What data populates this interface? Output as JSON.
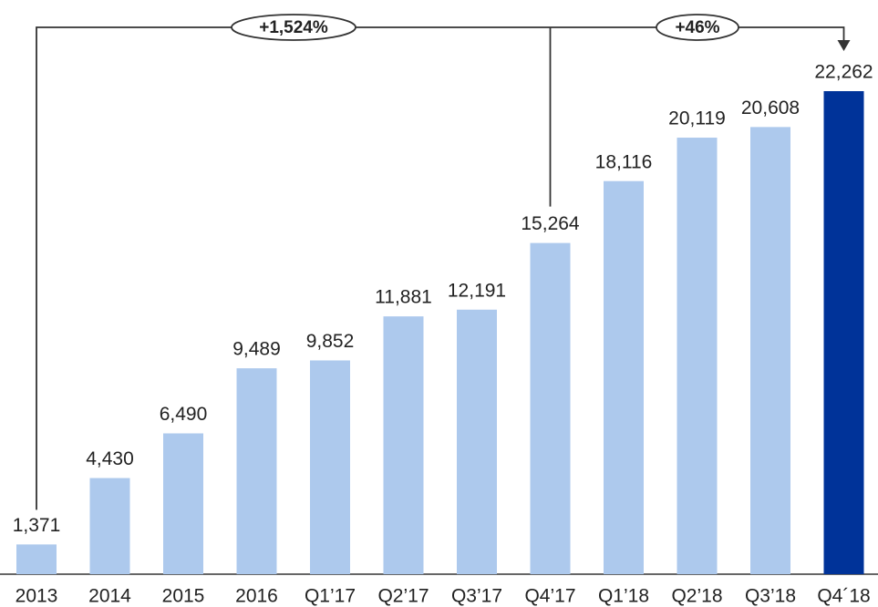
{
  "chart_data": {
    "type": "bar",
    "categories": [
      "2013",
      "2014",
      "2015",
      "2016",
      "Q1’17",
      "Q2’17",
      "Q3’17",
      "Q4’17",
      "Q1’18",
      "Q2’18",
      "Q3’18",
      "Q4´18"
    ],
    "values": [
      1371,
      4430,
      6490,
      9489,
      9852,
      11881,
      12191,
      15264,
      18116,
      20119,
      20608,
      22262
    ],
    "value_labels": [
      "1,371",
      "4,430",
      "6,490",
      "9,489",
      "9,852",
      "11,881",
      "12,191",
      "15,264",
      "18,116",
      "20,119",
      "20,608",
      "22,262"
    ],
    "colors": [
      "#adc9ed",
      "#adc9ed",
      "#adc9ed",
      "#adc9ed",
      "#adc9ed",
      "#adc9ed",
      "#adc9ed",
      "#adc9ed",
      "#adc9ed",
      "#adc9ed",
      "#adc9ed",
      "#003399"
    ],
    "annotations": [
      "+1,524%",
      "+46%"
    ]
  }
}
